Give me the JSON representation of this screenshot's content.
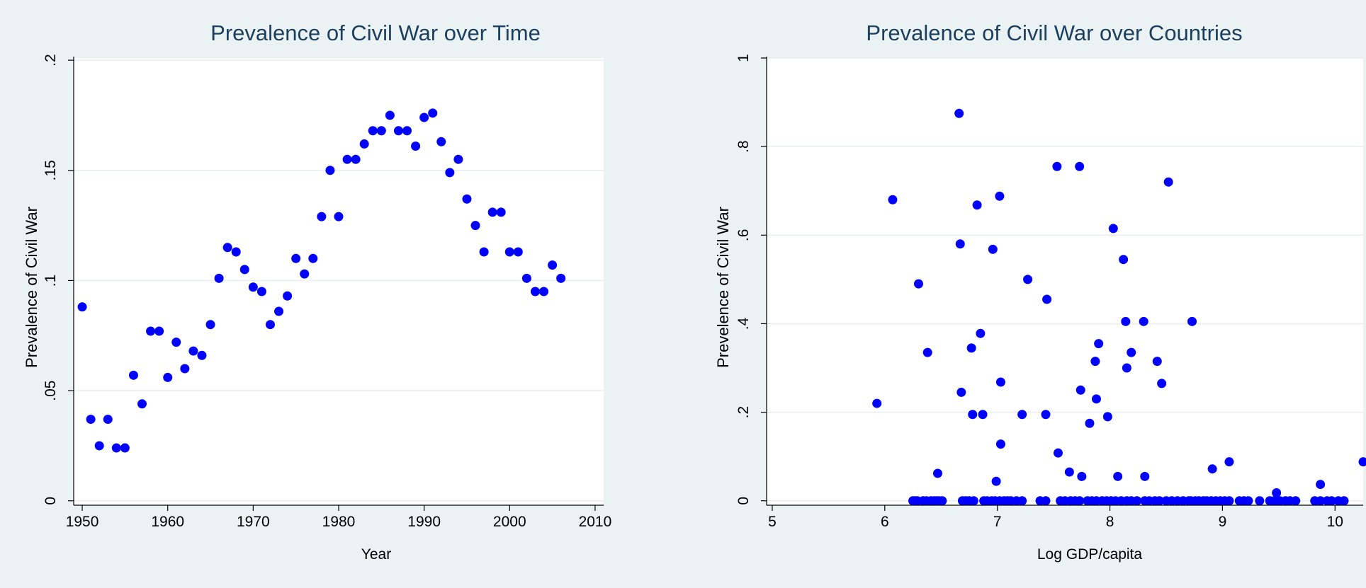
{
  "colors": {
    "outer_background": "#eaf2f3",
    "plot_background": "#ffffff",
    "gridline": "#e6eef0",
    "marker": "#0000ff",
    "axis": "#000000",
    "title": "#1c3f5e"
  },
  "chart_data": [
    {
      "type": "scatter",
      "title": "Prevalence of Civil War over Time",
      "xlabel": "Year",
      "ylabel": "Prevalence of Civil War",
      "xlim": [
        1949,
        2011
      ],
      "ylim": [
        -0.002,
        0.201
      ],
      "xticks": [
        1950,
        1960,
        1970,
        1980,
        1990,
        2000,
        2010
      ],
      "xtick_labels": [
        "1950",
        "1960",
        "1970",
        "1980",
        "1990",
        "2000",
        "2010"
      ],
      "yticks": [
        0,
        0.05,
        0.1,
        0.15,
        0.2
      ],
      "ytick_labels": [
        "0",
        ".05",
        ".1",
        ".15",
        ".2"
      ],
      "grid": true,
      "marker_color": "#0000ff",
      "x": [
        1950,
        1951,
        1952,
        1953,
        1954,
        1955,
        1956,
        1957,
        1958,
        1959,
        1960,
        1961,
        1962,
        1963,
        1964,
        1965,
        1966,
        1967,
        1968,
        1969,
        1970,
        1971,
        1972,
        1973,
        1974,
        1975,
        1976,
        1977,
        1978,
        1979,
        1980,
        1981,
        1982,
        1983,
        1984,
        1985,
        1986,
        1987,
        1988,
        1989,
        1990,
        1991,
        1992,
        1993,
        1994,
        1995,
        1996,
        1997,
        1998,
        1999,
        2000,
        2001,
        2002,
        2003,
        2004,
        2005,
        2006
      ],
      "y": [
        0.088,
        0.037,
        0.025,
        0.037,
        0.024,
        0.024,
        0.057,
        0.044,
        0.077,
        0.077,
        0.056,
        0.072,
        0.06,
        0.068,
        0.066,
        0.08,
        0.101,
        0.115,
        0.113,
        0.105,
        0.097,
        0.095,
        0.08,
        0.086,
        0.093,
        0.11,
        0.103,
        0.11,
        0.129,
        0.15,
        0.129,
        0.155,
        0.155,
        0.162,
        0.168,
        0.168,
        0.175,
        0.168,
        0.168,
        0.161,
        0.174,
        0.176,
        0.163,
        0.149,
        0.155,
        0.137,
        0.125,
        0.113,
        0.131,
        0.131,
        0.113,
        0.113,
        0.101,
        0.095,
        0.095,
        0.107,
        0.101
      ]
    },
    {
      "type": "scatter",
      "title": "Prevalence of Civil War over Countries",
      "xlabel": "Log GDP/capita",
      "ylabel": "Prevelence of Civil War",
      "xlim": [
        4.95,
        10.25
      ],
      "ylim": [
        -0.01,
        1.0
      ],
      "xticks": [
        5,
        6,
        7,
        8,
        9,
        10
      ],
      "xtick_labels": [
        "5",
        "6",
        "7",
        "8",
        "9",
        "10"
      ],
      "yticks": [
        0,
        0.2,
        0.4,
        0.6,
        0.8,
        1
      ],
      "ytick_labels": [
        "0",
        ".2",
        ".4",
        ".6",
        ".8",
        "1"
      ],
      "grid": true,
      "marker_color": "#0000ff",
      "x": [
        5.93,
        6.07,
        6.3,
        6.38,
        6.47,
        6.66,
        6.67,
        6.68,
        6.77,
        6.78,
        6.82,
        6.85,
        6.87,
        6.96,
        6.99,
        7.02,
        7.03,
        7.03,
        7.22,
        7.27,
        7.43,
        7.44,
        7.53,
        7.54,
        7.64,
        7.73,
        7.74,
        7.75,
        7.82,
        7.87,
        7.88,
        7.9,
        7.98,
        8.03,
        8.07,
        8.12,
        8.14,
        8.15,
        8.19,
        8.3,
        8.31,
        8.42,
        8.46,
        8.52,
        8.73,
        8.91,
        9.06,
        9.48,
        9.87,
        10.25,
        6.25,
        6.27,
        6.29,
        6.34,
        6.37,
        6.41,
        6.44,
        6.46,
        6.48,
        6.51,
        6.69,
        6.72,
        6.75,
        6.79,
        6.88,
        6.91,
        6.95,
        6.98,
        7.02,
        7.06,
        7.09,
        7.12,
        7.17,
        7.22,
        7.38,
        7.43,
        7.56,
        7.6,
        7.65,
        7.69,
        7.73,
        7.8,
        7.84,
        7.88,
        7.93,
        7.97,
        8.01,
        8.05,
        8.1,
        8.15,
        8.19,
        8.24,
        8.31,
        8.35,
        8.4,
        8.44,
        8.5,
        8.55,
        8.6,
        8.65,
        8.7,
        8.72,
        8.76,
        8.79,
        8.83,
        8.86,
        8.9,
        8.94,
        8.98,
        9.02,
        9.06,
        9.15,
        9.19,
        9.23,
        9.33,
        9.42,
        9.46,
        9.48,
        9.51,
        9.56,
        9.6,
        9.65,
        9.82,
        9.87,
        9.93,
        9.97,
        10.03,
        10.08
      ],
      "y": [
        0.22,
        0.68,
        0.49,
        0.335,
        0.062,
        0.875,
        0.58,
        0.245,
        0.345,
        0.195,
        0.668,
        0.378,
        0.195,
        0.568,
        0.044,
        0.688,
        0.268,
        0.128,
        0.195,
        0.5,
        0.195,
        0.455,
        0.755,
        0.108,
        0.065,
        0.755,
        0.25,
        0.055,
        0.175,
        0.315,
        0.23,
        0.355,
        0.19,
        0.615,
        0.055,
        0.545,
        0.405,
        0.3,
        0.335,
        0.405,
        0.055,
        0.315,
        0.265,
        0.72,
        0.405,
        0.072,
        0.088,
        0.018,
        0.037,
        0.088,
        0,
        0,
        0,
        0,
        0,
        0,
        0,
        0,
        0,
        0,
        0,
        0,
        0,
        0,
        0,
        0,
        0,
        0,
        0,
        0,
        0,
        0,
        0,
        0,
        0,
        0,
        0,
        0,
        0,
        0,
        0,
        0,
        0,
        0,
        0,
        0,
        0,
        0,
        0,
        0,
        0,
        0,
        0,
        0,
        0,
        0,
        0,
        0,
        0,
        0,
        0,
        0,
        0,
        0,
        0,
        0,
        0,
        0,
        0,
        0,
        0,
        0,
        0,
        0,
        0,
        0,
        0,
        0,
        0,
        0,
        0,
        0,
        0,
        0,
        0,
        0,
        0,
        0
      ]
    }
  ]
}
